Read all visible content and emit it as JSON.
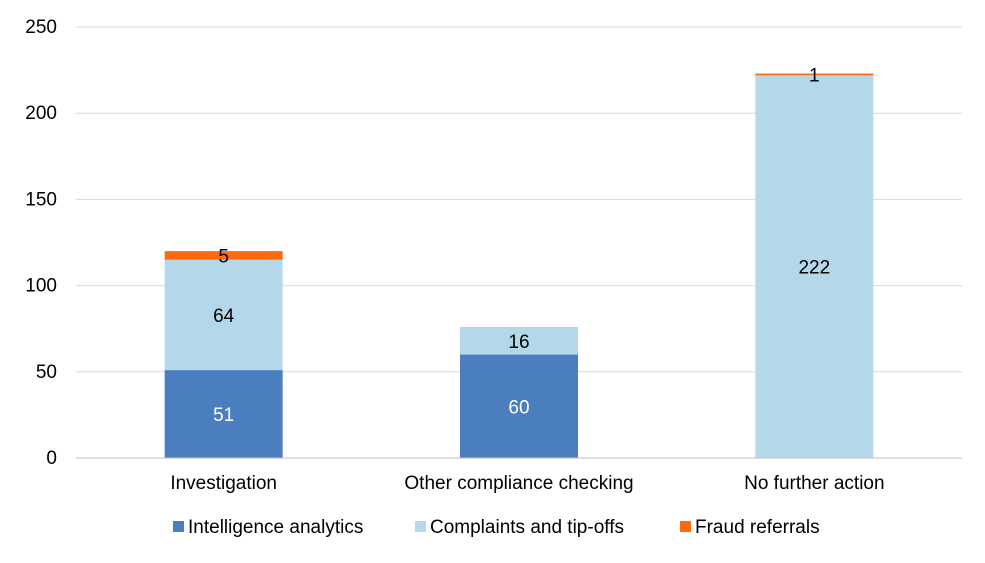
{
  "chart_data": {
    "type": "bar",
    "stacked": true,
    "categories": [
      "Investigation",
      "Other compliance checking",
      "No further action"
    ],
    "series": [
      {
        "name": "Intelligence analytics",
        "values": [
          51,
          60,
          0
        ],
        "color": "#4a7ebf",
        "label_color": "#ffffff"
      },
      {
        "name": "Complaints and tip-offs",
        "values": [
          64,
          16,
          222
        ],
        "color": "#b4d7ea",
        "label_color": "#000000"
      },
      {
        "name": "Fraud referrals",
        "values": [
          5,
          0,
          1
        ],
        "color": "#ff6a0d",
        "label_color": "#000000"
      }
    ],
    "yticks": [
      0,
      50,
      100,
      150,
      200,
      250
    ],
    "ylim": [
      0,
      250
    ],
    "grid": true,
    "legend_position": "bottom"
  }
}
